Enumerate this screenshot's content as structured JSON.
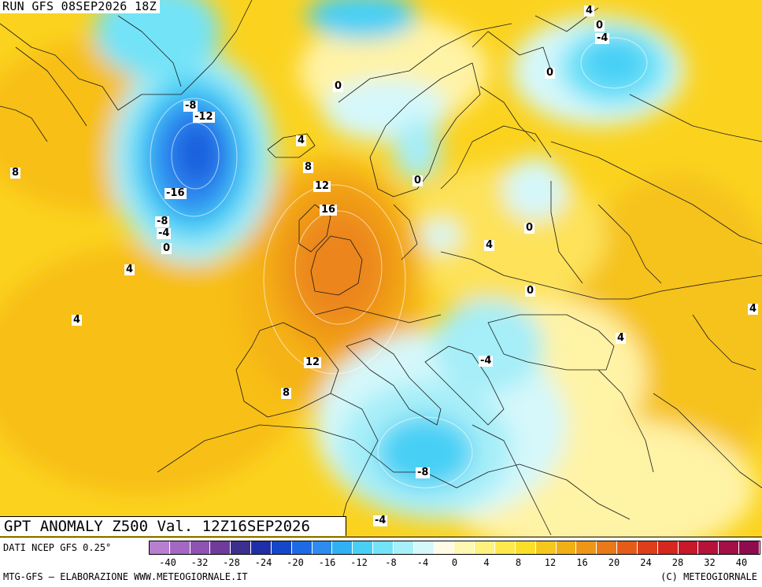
{
  "header": {
    "run_title": "RUN GFS 08SEP2026 18Z"
  },
  "map": {
    "title": "GPT ANOMALY Z500 Val. 12Z16SEP2026",
    "contour_labels": [
      "-8",
      "-12",
      "-16",
      "-8",
      "-4",
      "0",
      "8",
      "4",
      "4",
      "4",
      "8",
      "12",
      "16",
      "12",
      "8",
      "0",
      "0",
      "0",
      "0",
      "-4",
      "0",
      "4",
      "0",
      "4",
      "4",
      "-4",
      "-8",
      "-4",
      "4",
      "0"
    ]
  },
  "legend": {
    "data_source": "DATI NCEP GFS 0.25°",
    "tick_labels": [
      "-40",
      "-32",
      "-28",
      "-24",
      "-20",
      "-16",
      "-12",
      "-8",
      "-4",
      "0",
      "4",
      "8",
      "12",
      "16",
      "20",
      "24",
      "28",
      "32",
      "40"
    ],
    "colors": [
      "#b87fd1",
      "#a367c4",
      "#8f53b3",
      "#6f3c9c",
      "#3c2f8f",
      "#1f2fa8",
      "#1548c8",
      "#1e6ae6",
      "#2e8cf0",
      "#2fb1f4",
      "#46d0f7",
      "#73e3f8",
      "#a6f0fa",
      "#d5f8fb",
      "#fffbe6",
      "#fff8b2",
      "#fff27d",
      "#ffe94d",
      "#fbe02a",
      "#f6c81b",
      "#f2b014",
      "#ee9615",
      "#e97a17",
      "#e45c18",
      "#de3f1a",
      "#d6261d",
      "#c8182a",
      "#b6123a",
      "#a40f46",
      "#8f0b4e"
    ]
  },
  "footer": {
    "credits_left": "MTG-GFS – ELABORAZIONE WWW.METEOGIORNALE.IT",
    "credits_right": "(C) METEOGIORNALE"
  }
}
